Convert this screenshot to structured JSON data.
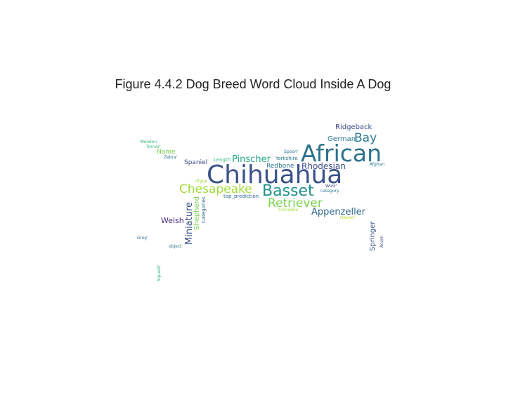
{
  "title": "Figure 4.4.2 Dog Breed Word Cloud Inside A Dog",
  "words": [
    {
      "text": "Chihuahua",
      "color": "#3b528b"
    },
    {
      "text": "African",
      "color": "#2c728e"
    },
    {
      "text": "Basset",
      "color": "#21918c"
    },
    {
      "text": "Chesapeake",
      "color": "#a0da39"
    },
    {
      "text": "Retriever",
      "color": "#7ad151"
    },
    {
      "text": "Bay",
      "color": "#2a788e"
    },
    {
      "text": "Appenzeller",
      "color": "#31688e"
    },
    {
      "text": "Pinscher",
      "color": "#22a884"
    },
    {
      "text": "Rhodesian",
      "color": "#3e4a89"
    },
    {
      "text": "Miniature",
      "color": "#3b528b"
    },
    {
      "text": "German",
      "color": "#2a788e"
    },
    {
      "text": "Ridgeback",
      "color": "#3e4a89"
    },
    {
      "text": "Welsh",
      "color": "#472d7b"
    },
    {
      "text": "Shepherd",
      "color": "#7ad151"
    },
    {
      "text": "Springer",
      "color": "#3b528b"
    },
    {
      "text": "Redbone",
      "color": "#2c728e"
    },
    {
      "text": "Spaniel",
      "color": "#3e4a89"
    },
    {
      "text": "Name",
      "color": "#7ad151"
    },
    {
      "text": "Categories",
      "color": "#31688e"
    },
    {
      "text": "Yorkshire",
      "color": "#2c728e"
    },
    {
      "text": "top_prediction",
      "color": "#31688e"
    },
    {
      "text": "Length",
      "color": "#35b779"
    },
    {
      "text": "Spoon'",
      "color": "#2a788e"
    },
    {
      "text": "Wooden",
      "color": "#35b779"
    },
    {
      "text": "Terrier'",
      "color": "#35b779"
    },
    {
      "text": "Zebra'",
      "color": "#2c728e"
    },
    {
      "text": "dtype",
      "color": "#a0da39"
    },
    {
      "text": "Wool'",
      "color": "#3e4a89"
    },
    {
      "text": "category",
      "color": "#2a788e"
    },
    {
      "text": "Crocodile'",
      "color": "#a0da39"
    },
    {
      "text": "Hound'",
      "color": "#b5de2b"
    },
    {
      "text": "Afghan",
      "color": "#2a788e"
    },
    {
      "text": "Acorn",
      "color": "#3e4a89"
    },
    {
      "text": "Grey'",
      "color": "#31688e"
    },
    {
      "text": "object",
      "color": "#2c728e"
    },
    {
      "text": "Squash'",
      "color": "#22a884"
    }
  ]
}
